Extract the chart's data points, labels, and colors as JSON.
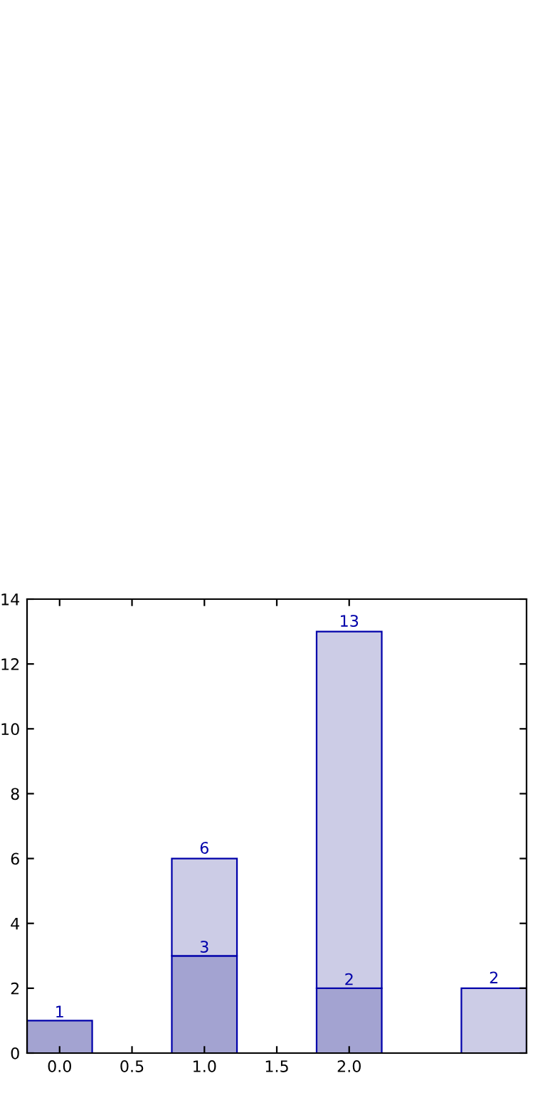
{
  "chart_data": {
    "type": "bar",
    "stacked": true,
    "x": [
      0,
      1,
      2,
      3
    ],
    "series": [
      {
        "color": "#a3a3d1",
        "values": [
          1,
          3,
          2,
          null
        ],
        "value_labels": [
          "1",
          "3",
          "2",
          null
        ]
      },
      {
        "color": "#ccccE6",
        "values": [
          null,
          3,
          11,
          2
        ]
      }
    ],
    "totals": [
      null,
      "6",
      "13",
      "2"
    ],
    "xlim": [
      -0.225,
      3.225
    ],
    "xticks": [
      {
        "value": 0,
        "label": "0.0"
      },
      {
        "value": 0.5,
        "label": "0.5"
      },
      {
        "value": 1,
        "label": "1.0"
      },
      {
        "value": 1.5,
        "label": "1.5"
      },
      {
        "value": 2,
        "label": "2.0"
      }
    ],
    "ylim": [
      0,
      14
    ],
    "yticks": [
      0,
      2,
      4,
      6,
      8,
      10,
      12,
      14
    ],
    "grid": false,
    "legend": false
  }
}
